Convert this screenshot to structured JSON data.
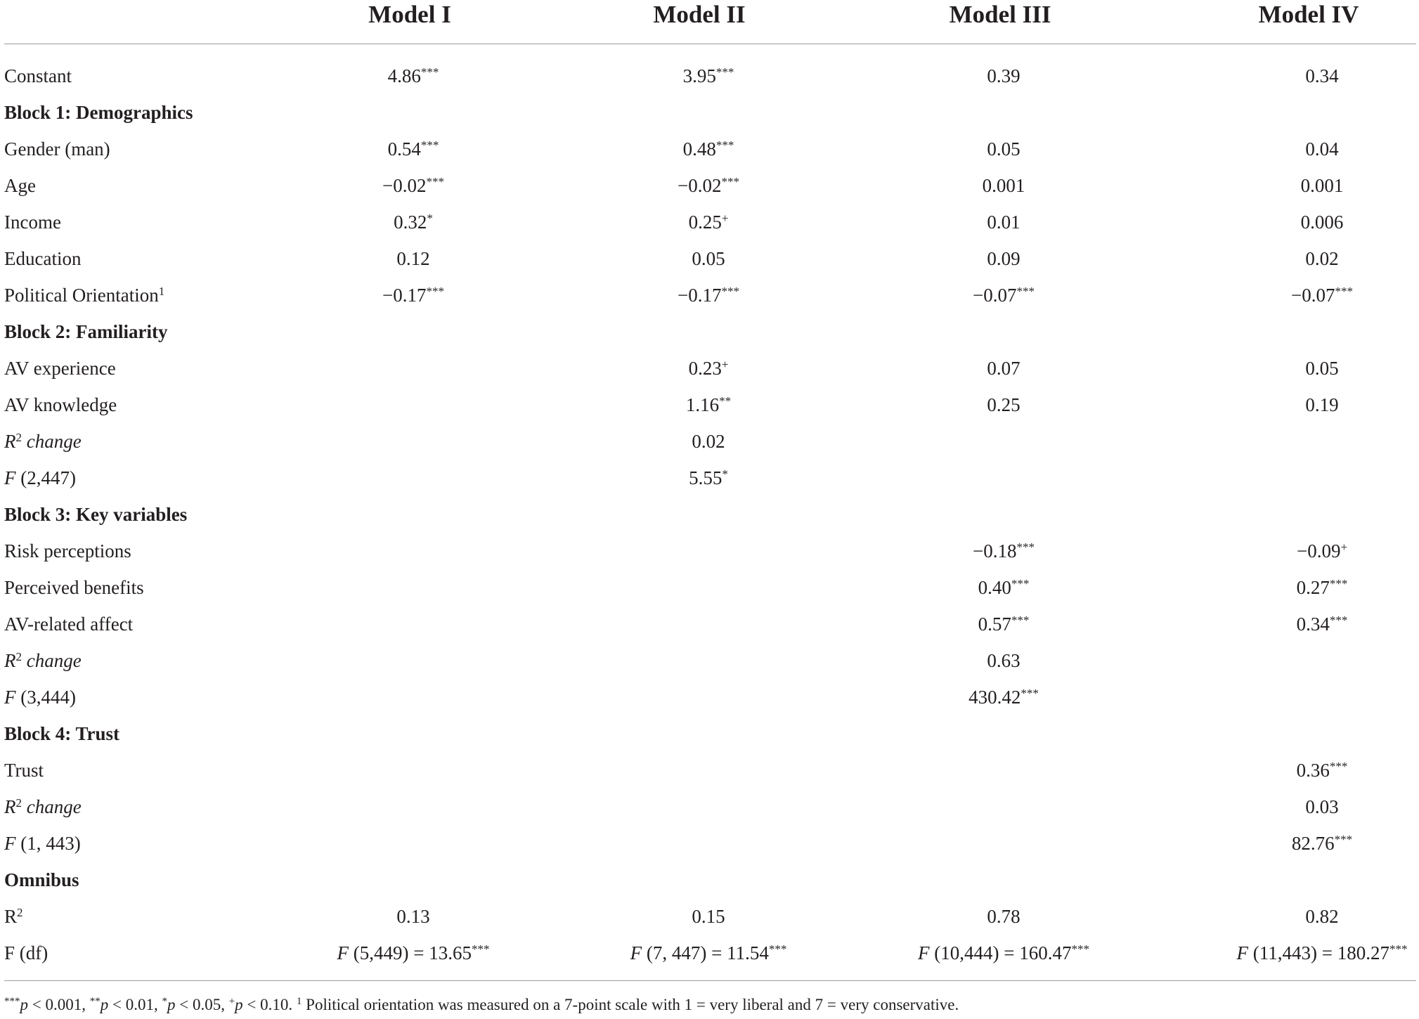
{
  "columns": [
    "Model I",
    "Model II",
    "Model III",
    "Model IV"
  ],
  "rows": [
    {
      "kind": "data",
      "label": "Constant",
      "cells": [
        "4.86***",
        "3.95***",
        "0.39",
        "0.34"
      ]
    },
    {
      "kind": "section",
      "label": "Block 1: Demographics"
    },
    {
      "kind": "data",
      "label": "Gender (man)",
      "cells": [
        "0.54***",
        "0.48***",
        "0.05",
        "0.04"
      ]
    },
    {
      "kind": "data",
      "label": "Age",
      "cells": [
        "−0.02***",
        "−0.02***",
        "0.001",
        "0.001"
      ]
    },
    {
      "kind": "data",
      "label": "Income",
      "cells": [
        "0.32*",
        "0.25+",
        "0.01",
        "0.006"
      ]
    },
    {
      "kind": "data",
      "label": "Education",
      "cells": [
        "0.12",
        "0.05",
        "0.09",
        "0.02"
      ]
    },
    {
      "kind": "data",
      "label": "Political Orientation",
      "label_sup": "1",
      "cells": [
        "−0.17***",
        "−0.17***",
        "−0.07***",
        "−0.07***"
      ]
    },
    {
      "kind": "section",
      "label": "Block 2: Familiarity"
    },
    {
      "kind": "data",
      "label": "AV experience",
      "cells": [
        "",
        "0.23+",
        "0.07",
        "0.05"
      ]
    },
    {
      "kind": "data",
      "label": "AV knowledge",
      "cells": [
        "",
        "1.16**",
        "0.25",
        "0.19"
      ]
    },
    {
      "kind": "r2change",
      "label": "R",
      "label_sup": "2",
      "label_rest": " change",
      "cells": [
        "",
        "0.02",
        "",
        ""
      ]
    },
    {
      "kind": "ftest",
      "label": "F",
      "label_rest": " (2,447)",
      "cells": [
        "",
        "5.55*",
        "",
        ""
      ]
    },
    {
      "kind": "section",
      "label": "Block 3: Key variables"
    },
    {
      "kind": "data",
      "label": "Risk perceptions",
      "cells": [
        "",
        "",
        "−0.18***",
        "−0.09+"
      ]
    },
    {
      "kind": "data",
      "label": "Perceived benefits",
      "cells": [
        "",
        "",
        "0.40***",
        "0.27***"
      ]
    },
    {
      "kind": "data",
      "label": "AV-related affect",
      "cells": [
        "",
        "",
        "0.57***",
        "0.34***"
      ]
    },
    {
      "kind": "r2change",
      "label": "R",
      "label_sup": "2",
      "label_rest": " change",
      "cells": [
        "",
        "",
        "0.63",
        ""
      ]
    },
    {
      "kind": "ftest",
      "label": "F",
      "label_rest": " (3,444)",
      "cells": [
        "",
        "",
        "430.42***",
        ""
      ]
    },
    {
      "kind": "section",
      "label": "Block 4: Trust"
    },
    {
      "kind": "data",
      "label": "Trust",
      "cells": [
        "",
        "",
        "",
        "0.36***"
      ]
    },
    {
      "kind": "r2change",
      "label": "R",
      "label_sup": "2",
      "label_rest": " change",
      "cells": [
        "",
        "",
        "",
        "0.03"
      ]
    },
    {
      "kind": "ftest",
      "label": "F",
      "label_rest": " (1, 443)",
      "cells": [
        "",
        "",
        "",
        "82.76***"
      ]
    },
    {
      "kind": "section",
      "label": "Omnibus"
    },
    {
      "kind": "data",
      "label": "R",
      "label_sup": "2",
      "cells": [
        "0.13",
        "0.15",
        "0.78",
        "0.82"
      ]
    },
    {
      "kind": "data",
      "label": "F (df)",
      "cells": [
        "F (5,449) = 13.65***",
        "F (7, 447) = 11.54***",
        "F (10,444) = 160.47***",
        "F (11,443) = 180.27***"
      ]
    }
  ],
  "footnote": {
    "p1": "***",
    "p1_var": "p",
    "p1_rest": " < 0.001, ",
    "p2": "**",
    "p2_var": "p",
    "p2_rest": " < 0.01, ",
    "p3": "*",
    "p3_var": "p",
    "p3_rest": " < 0.05, ",
    "p4": "+",
    "p4_var": "p",
    "p4_rest": " < 0.10. ",
    "note_sup": "1",
    "note_text": " Political orientation was measured on a 7-point scale with 1 = very liberal and 7 = very conservative."
  }
}
